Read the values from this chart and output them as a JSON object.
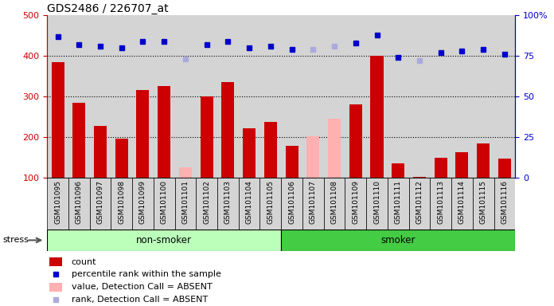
{
  "title": "GDS2486 / 226707_at",
  "samples": [
    "GSM101095",
    "GSM101096",
    "GSM101097",
    "GSM101098",
    "GSM101099",
    "GSM101100",
    "GSM101101",
    "GSM101102",
    "GSM101103",
    "GSM101104",
    "GSM101105",
    "GSM101106",
    "GSM101107",
    "GSM101108",
    "GSM101109",
    "GSM101110",
    "GSM101111",
    "GSM101112",
    "GSM101113",
    "GSM101114",
    "GSM101115",
    "GSM101116"
  ],
  "count_values": [
    385,
    285,
    228,
    195,
    315,
    325,
    125,
    300,
    335,
    222,
    238,
    178,
    202,
    245,
    280,
    400,
    135,
    102,
    148,
    163,
    183,
    147
  ],
  "absent_count": [
    null,
    null,
    null,
    null,
    null,
    null,
    125,
    null,
    null,
    null,
    null,
    null,
    202,
    245,
    null,
    null,
    null,
    null,
    null,
    null,
    null,
    null
  ],
  "rank_values": [
    87,
    82,
    81,
    80,
    84,
    84,
    null,
    82,
    84,
    80,
    81,
    79,
    null,
    null,
    83,
    88,
    74,
    null,
    77,
    78,
    79,
    76
  ],
  "absent_rank": [
    null,
    null,
    null,
    null,
    null,
    null,
    73,
    null,
    null,
    null,
    null,
    null,
    79,
    81,
    null,
    null,
    null,
    72,
    null,
    null,
    null,
    null
  ],
  "non_smoker_count": 11,
  "smoker_count": 11,
  "ylim_left": [
    100,
    500
  ],
  "ylim_right": [
    0,
    100
  ],
  "bar_color_red": "#cc0000",
  "bar_color_pink": "#ffb0b0",
  "dot_color_blue": "#0000cc",
  "dot_color_lightblue": "#aaaadd",
  "bg_color": "#d4d4d4",
  "non_smoker_color": "#bbffbb",
  "smoker_color": "#44cc44",
  "right_axis_color": "#0000cc",
  "left_axis_color": "#cc0000",
  "tick_bg_color": "#d4d4d4"
}
